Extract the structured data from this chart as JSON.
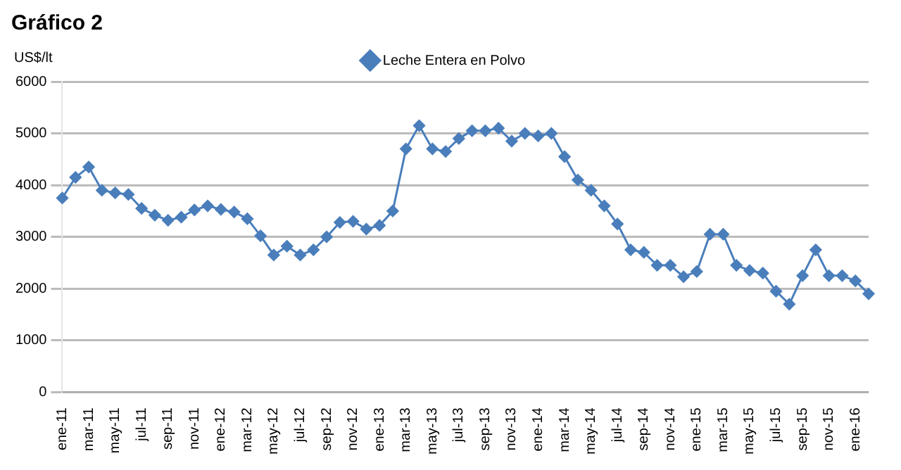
{
  "chart_data": {
    "type": "line",
    "title": "Gráfico 2",
    "ylabel": "US$/lt",
    "categories": [
      "ene-11",
      null,
      "mar-11",
      null,
      "may-11",
      null,
      "jul-11",
      null,
      "sep-11",
      null,
      "nov-11",
      null,
      "ene-12",
      null,
      "mar-12",
      null,
      "may-12",
      null,
      "jul-12",
      null,
      "sep-12",
      null,
      "nov-12",
      null,
      "ene-13",
      null,
      "mar-13",
      null,
      "may-13",
      null,
      "jul-13",
      null,
      "sep-13",
      null,
      "nov-13",
      null,
      "ene-14",
      null,
      "mar-14",
      null,
      "may-14",
      null,
      "jul-14",
      null,
      "sep-14",
      null,
      "nov-14",
      null,
      "ene-15",
      null,
      "mar-15",
      null,
      "may-15",
      null,
      "jul-15",
      null,
      "sep-15",
      null,
      "nov-15",
      null,
      "ene-16",
      null
    ],
    "series": [
      {
        "name": "Leche Entera en Polvo",
        "color": "#4a7ebb",
        "values": [
          3750,
          4150,
          4350,
          3900,
          3850,
          3820,
          3550,
          3420,
          3320,
          3380,
          3520,
          3600,
          3530,
          3480,
          3350,
          3020,
          2650,
          2820,
          2650,
          2750,
          3000,
          3280,
          3300,
          3150,
          3220,
          3500,
          4700,
          5150,
          4700,
          4650,
          4900,
          5050,
          5050,
          5100,
          4850,
          5000,
          4950,
          5000,
          4550,
          4100,
          3900,
          3600,
          3250,
          2750,
          2700,
          2450,
          2450,
          2230,
          2330,
          3050,
          3050,
          2450,
          2350,
          2300,
          1950,
          1700,
          2250,
          2750,
          2250,
          2250,
          2150,
          1900
        ]
      }
    ],
    "ylim": [
      0,
      6000
    ],
    "yticks": [
      0,
      1000,
      2000,
      3000,
      4000,
      5000,
      6000
    ],
    "grid": "y",
    "legend": "top",
    "marker": "diamond",
    "line_style": "solid"
  }
}
